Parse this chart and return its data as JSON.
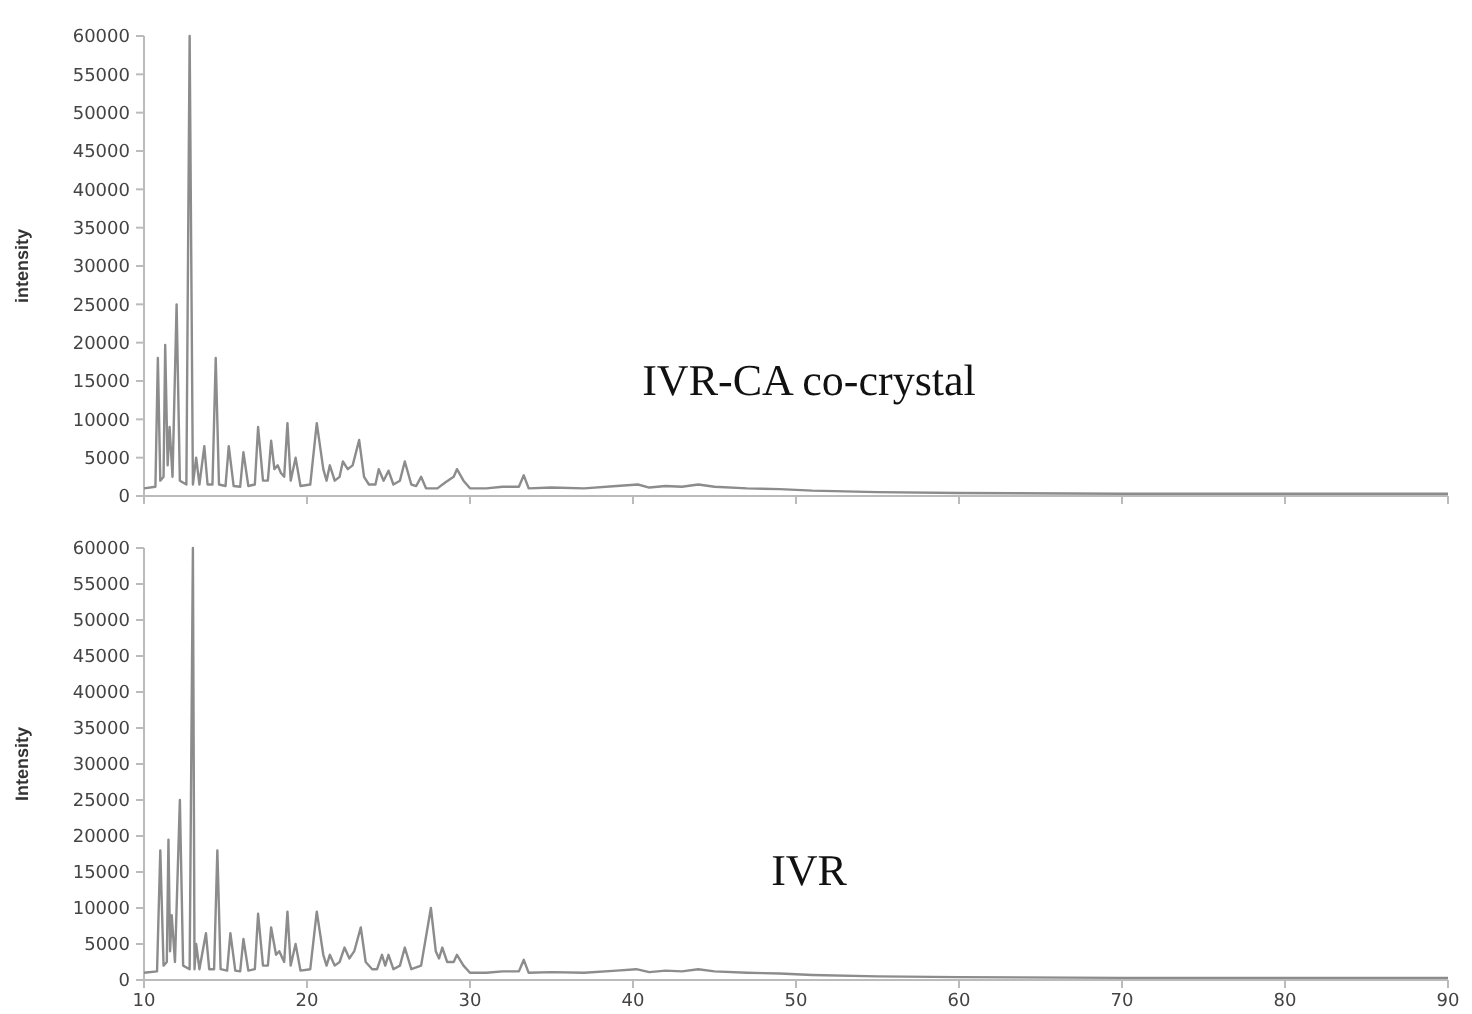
{
  "chart_data": [
    {
      "type": "line",
      "ylabel": "intensity",
      "annotations": [
        "IVR-CA co-crystal"
      ],
      "xlim": [
        10,
        90
      ],
      "ylim": [
        0,
        60000
      ],
      "xticks": [
        10,
        20,
        30,
        40,
        50,
        60,
        70,
        80,
        90
      ],
      "yticks": [
        0,
        5000,
        10000,
        15000,
        20000,
        25000,
        30000,
        35000,
        40000,
        45000,
        50000,
        55000,
        60000
      ],
      "tick_labels": "y",
      "grid": false,
      "marker": "none",
      "line_style": "solid",
      "series": [
        {
          "color": "#8c8c8c",
          "x": [
            10.0,
            10.7,
            10.85,
            11.0,
            11.2,
            11.3,
            11.45,
            11.57,
            11.75,
            12.0,
            12.2,
            12.6,
            12.8,
            13.0,
            13.2,
            13.4,
            13.7,
            13.9,
            14.2,
            14.4,
            14.6,
            15.0,
            15.2,
            15.5,
            15.9,
            16.1,
            16.4,
            16.8,
            17.0,
            17.3,
            17.6,
            17.8,
            18.0,
            18.2,
            18.4,
            18.6,
            18.8,
            19.0,
            19.3,
            19.6,
            20.2,
            20.6,
            21.0,
            21.2,
            21.4,
            21.7,
            22.0,
            22.2,
            22.5,
            22.8,
            23.2,
            23.5,
            23.8,
            24.2,
            24.4,
            24.7,
            25.0,
            25.3,
            25.7,
            26.0,
            26.4,
            26.7,
            27.0,
            27.3,
            28.0,
            28.5,
            29.0,
            29.2,
            29.6,
            30.0,
            31.0,
            32.0,
            33.0,
            33.3,
            33.6,
            35.0,
            37.0,
            39.0,
            40.3,
            41.0,
            42.0,
            43.0,
            44.0,
            45.0,
            47.0,
            49.0,
            51.0,
            55.0,
            60.0,
            70.0,
            80.0,
            90.0
          ],
          "values": [
            1000,
            1200,
            18000,
            2000,
            2500,
            19700,
            4000,
            9000,
            2500,
            25000,
            2000,
            1500,
            60000,
            1500,
            5000,
            1500,
            6500,
            1500,
            1500,
            18000,
            1500,
            1300,
            6500,
            1300,
            1200,
            5700,
            1300,
            1500,
            9000,
            2000,
            2000,
            7200,
            3500,
            4000,
            3000,
            2500,
            9500,
            2000,
            5000,
            1300,
            1500,
            9500,
            3500,
            2000,
            4000,
            2000,
            2500,
            4500,
            3500,
            4000,
            7300,
            2500,
            1500,
            1500,
            3500,
            2000,
            3300,
            1500,
            2000,
            4500,
            1500,
            1300,
            2500,
            1000,
            1000,
            1800,
            2500,
            3500,
            2000,
            1000,
            1000,
            1200,
            1200,
            2700,
            1000,
            1100,
            1000,
            1300,
            1500,
            1100,
            1300,
            1200,
            1500,
            1200,
            1000,
            900,
            700,
            500,
            400,
            300,
            300,
            300
          ]
        }
      ]
    },
    {
      "type": "line",
      "ylabel": "Intensity",
      "annotations": [
        "IVR"
      ],
      "xlim": [
        10,
        90
      ],
      "ylim": [
        0,
        60000
      ],
      "xticks": [
        10,
        20,
        30,
        40,
        50,
        60,
        70,
        80,
        90
      ],
      "yticks": [
        0,
        5000,
        10000,
        15000,
        20000,
        25000,
        30000,
        35000,
        40000,
        45000,
        50000,
        55000,
        60000
      ],
      "grid": false,
      "marker": "none",
      "line_style": "solid",
      "series": [
        {
          "color": "#8c8c8c",
          "x": [
            10.0,
            10.8,
            11.0,
            11.2,
            11.4,
            11.5,
            11.6,
            11.7,
            11.9,
            12.2,
            12.4,
            12.8,
            13.0,
            13.1,
            13.2,
            13.4,
            13.8,
            14.0,
            14.3,
            14.5,
            14.7,
            15.1,
            15.3,
            15.6,
            15.9,
            16.1,
            16.4,
            16.8,
            17.0,
            17.3,
            17.6,
            17.8,
            18.1,
            18.3,
            18.5,
            18.6,
            18.8,
            19.0,
            19.3,
            19.6,
            20.2,
            20.6,
            21.0,
            21.2,
            21.4,
            21.7,
            22.0,
            22.3,
            22.6,
            22.9,
            23.3,
            23.6,
            24.0,
            24.3,
            24.6,
            24.8,
            25.0,
            25.3,
            25.7,
            26.0,
            26.4,
            27.0,
            27.6,
            27.9,
            28.1,
            28.3,
            28.6,
            29.0,
            29.2,
            29.6,
            30.0,
            31.0,
            32.0,
            33.0,
            33.3,
            33.6,
            35.0,
            37.0,
            39.0,
            40.2,
            41.0,
            42.0,
            43.0,
            44.0,
            45.0,
            47.0,
            49.0,
            51.0,
            55.0,
            60.0,
            70.0,
            80.0,
            90.0
          ],
          "values": [
            1000,
            1200,
            18000,
            2000,
            2500,
            19500,
            4000,
            9000,
            2500,
            25000,
            2000,
            1500,
            60000,
            1500,
            5000,
            1500,
            6500,
            1500,
            1500,
            18000,
            1500,
            1300,
            6500,
            1300,
            1200,
            5700,
            1300,
            1500,
            9200,
            2000,
            2000,
            7300,
            3500,
            4000,
            3000,
            2500,
            9500,
            2000,
            5000,
            1300,
            1500,
            9500,
            3500,
            2000,
            3500,
            2000,
            2500,
            4500,
            3000,
            4000,
            7300,
            2500,
            1500,
            1500,
            3500,
            2000,
            3500,
            1500,
            2000,
            4500,
            1500,
            2000,
            10000,
            4000,
            3000,
            4500,
            2500,
            2500,
            3500,
            2000,
            1000,
            1000,
            1200,
            1200,
            2800,
            1000,
            1100,
            1000,
            1300,
            1500,
            1100,
            1300,
            1200,
            1500,
            1200,
            1000,
            900,
            700,
            500,
            400,
            300,
            300,
            300
          ]
        }
      ]
    }
  ]
}
